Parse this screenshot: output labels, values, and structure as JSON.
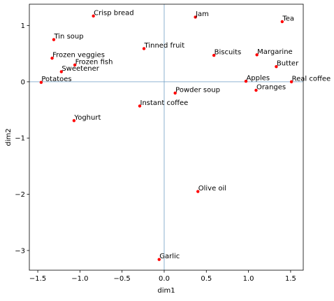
{
  "chart_data": {
    "type": "scatter",
    "title": "",
    "xlabel": "dim1",
    "ylabel": "dim2",
    "xlim": [
      -1.6,
      1.65
    ],
    "ylim": [
      -3.35,
      1.38
    ],
    "xticks": [
      -1.5,
      -1.0,
      -0.5,
      0.0,
      0.5,
      1.0,
      1.5
    ],
    "xtick_labels": [
      "−1.5",
      "−1.0",
      "−0.5",
      "0.0",
      "0.5",
      "1.0",
      "1.5"
    ],
    "yticks": [
      1,
      0,
      -1,
      -2,
      -3
    ],
    "ytick_labels": [
      "1",
      "0",
      "−1",
      "−2",
      "−3"
    ],
    "grid": false,
    "reference_lines": {
      "x": 0,
      "y": 0
    },
    "colors": {
      "points": "#ff0000",
      "reference_lines": "#6e9ec4",
      "frame": "#000000"
    },
    "points": [
      {
        "label": "Crisp bread",
        "x": -0.84,
        "y": 1.17
      },
      {
        "label": "Jam",
        "x": 0.37,
        "y": 1.15
      },
      {
        "label": "Tea",
        "x": 1.4,
        "y": 1.07
      },
      {
        "label": "Tin soup",
        "x": -1.31,
        "y": 0.75
      },
      {
        "label": "Tinned fruit",
        "x": -0.24,
        "y": 0.59
      },
      {
        "label": "Biscuits",
        "x": 0.59,
        "y": 0.47
      },
      {
        "label": "Margarine",
        "x": 1.1,
        "y": 0.48
      },
      {
        "label": "Frozen veggies",
        "x": -1.33,
        "y": 0.42
      },
      {
        "label": "Frozen fish",
        "x": -1.06,
        "y": 0.3
      },
      {
        "label": "Butter",
        "x": 1.33,
        "y": 0.27
      },
      {
        "label": "Sweetener",
        "x": -1.22,
        "y": 0.18
      },
      {
        "label": "Potatoes",
        "x": -1.46,
        "y": -0.01
      },
      {
        "label": "Apples",
        "x": 0.97,
        "y": 0.01
      },
      {
        "label": "Real coffee",
        "x": 1.51,
        "y": 0.0
      },
      {
        "label": "Oranges",
        "x": 1.09,
        "y": -0.15
      },
      {
        "label": "Powder soup",
        "x": 0.13,
        "y": -0.2
      },
      {
        "label": "Instant coffee",
        "x": -0.29,
        "y": -0.43
      },
      {
        "label": "Yoghurt",
        "x": -1.07,
        "y": -0.69
      },
      {
        "label": "Olive oil",
        "x": 0.4,
        "y": -1.95
      },
      {
        "label": "Garlic",
        "x": -0.06,
        "y": -3.16
      }
    ]
  }
}
